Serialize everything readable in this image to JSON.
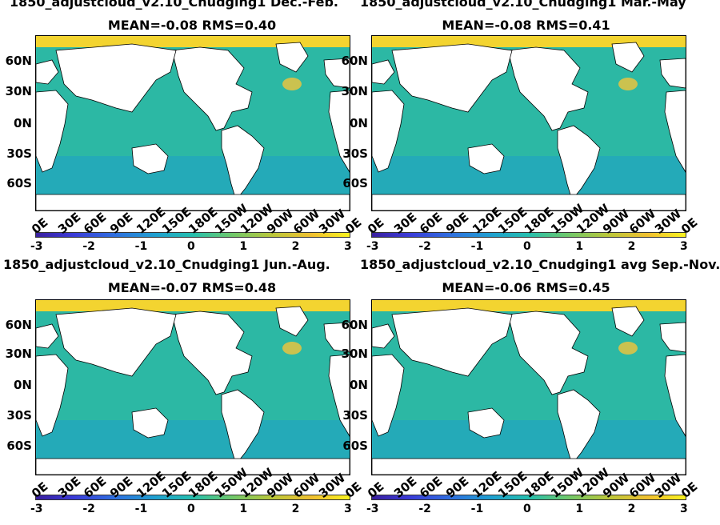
{
  "chart_data": [
    {
      "type": "heatmap",
      "title_line1": "1850_adjustcloud_v2.10_Cnudging1 Dec.-Feb.",
      "title_line2": "MEAN=-0.08   RMS=0.40",
      "y_ticks": [
        "60N",
        "30N",
        "0N",
        "30S",
        "60S"
      ],
      "x_ticks": [
        "0E",
        "30E",
        "60E",
        "90E",
        "120E",
        "150E",
        "180E",
        "150W",
        "120W",
        "90W",
        "60W",
        "30W",
        "0E"
      ],
      "colorbar_ticks": [
        "-3",
        "-2",
        "-1",
        "0",
        "1",
        "2",
        "3"
      ],
      "colorbar_range": [
        -3,
        3
      ],
      "mean": -0.08,
      "rms": 0.4
    },
    {
      "type": "heatmap",
      "title_line1": "1850_adjustcloud_v2.10_Cnudging1 Mar.-May",
      "title_line2": "MEAN=-0.08   RMS=0.41",
      "y_ticks": [
        "60N",
        "30N",
        "0N",
        "30S",
        "60S"
      ],
      "x_ticks": [
        "0E",
        "30E",
        "60E",
        "90E",
        "120E",
        "150E",
        "180E",
        "150W",
        "120W",
        "90W",
        "60W",
        "30W",
        "0E"
      ],
      "colorbar_ticks": [
        "-3",
        "-2",
        "-1",
        "0",
        "1",
        "2",
        "3"
      ],
      "colorbar_range": [
        -3,
        3
      ],
      "mean": -0.08,
      "rms": 0.41
    },
    {
      "type": "heatmap",
      "title_line1": "1850_adjustcloud_v2.10_Cnudging1 Jun.-Aug.",
      "title_line2": "MEAN=-0.07   RMS=0.48",
      "y_ticks": [
        "60N",
        "30N",
        "0N",
        "30S",
        "60S"
      ],
      "x_ticks": [
        "0E",
        "30E",
        "60E",
        "90E",
        "120E",
        "150E",
        "180E",
        "150W",
        "120W",
        "90W",
        "60W",
        "30W",
        "0E"
      ],
      "colorbar_ticks": [
        "-3",
        "-2",
        "-1",
        "0",
        "1",
        "2",
        "3"
      ],
      "colorbar_range": [
        -3,
        3
      ],
      "mean": -0.07,
      "rms": 0.48
    },
    {
      "type": "heatmap",
      "title_line1": "1850_adjustcloud_v2.10_Cnudging1 avg Sep.-Nov.",
      "title_line2": "MEAN=-0.06   RMS=0.45",
      "y_ticks": [
        "60N",
        "30N",
        "0N",
        "30S",
        "60S"
      ],
      "x_ticks": [
        "0E",
        "30E",
        "60E",
        "90E",
        "120E",
        "150E",
        "180E",
        "150W",
        "120W",
        "90W",
        "60W",
        "30W",
        "0E"
      ],
      "colorbar_ticks": [
        "-3",
        "-2",
        "-1",
        "0",
        "1",
        "2",
        "3"
      ],
      "colorbar_range": [
        -3,
        3
      ],
      "mean": -0.06,
      "rms": 0.45
    }
  ],
  "colors": {
    "ocean_base": "#2cb8a4",
    "land": "#ffffff",
    "arctic": "#f3d430",
    "southern_band": "#1f9ec8",
    "warm_anomaly": "#f4c43a"
  }
}
